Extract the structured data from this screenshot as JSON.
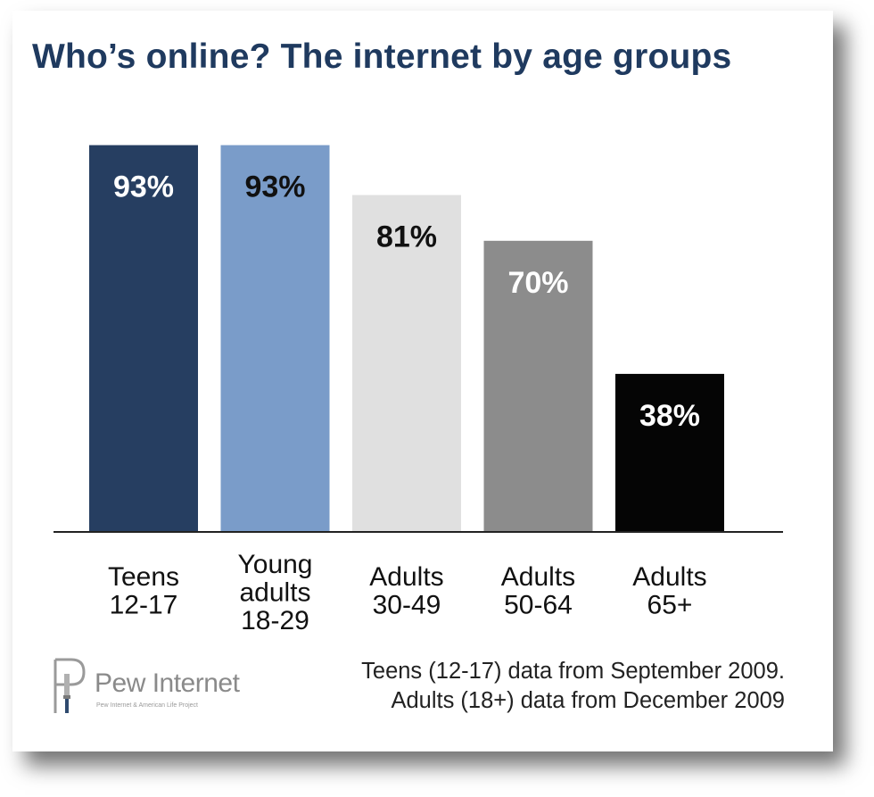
{
  "chart_data": {
    "type": "bar",
    "title": "Who’s online? The internet by age groups",
    "categories": [
      [
        "Teens",
        "12-17"
      ],
      [
        "Young",
        "adults",
        "18-29"
      ],
      [
        "Adults",
        "30-49"
      ],
      [
        "Adults",
        "50-64"
      ],
      [
        "Adults",
        "65+"
      ]
    ],
    "values": [
      93,
      93,
      81,
      70,
      38
    ],
    "value_labels": [
      "93%",
      "93%",
      "81%",
      "70%",
      "38%"
    ],
    "bar_colors": [
      "#263e61",
      "#7a9cc9",
      "#e0e0e0",
      "#8c8c8c",
      "#050505"
    ],
    "label_colors": [
      "#ffffff",
      "#111111",
      "#111111",
      "#ffffff",
      "#ffffff"
    ],
    "ylim": [
      0,
      100
    ],
    "grid": false,
    "legend": "none"
  },
  "logo": {
    "name": "Pew Internet",
    "tagline": "Pew Internet & American Life Project"
  },
  "source_note": {
    "line1": "Teens (12-17) data from September 2009.",
    "line2": "Adults (18+) data from December 2009"
  }
}
